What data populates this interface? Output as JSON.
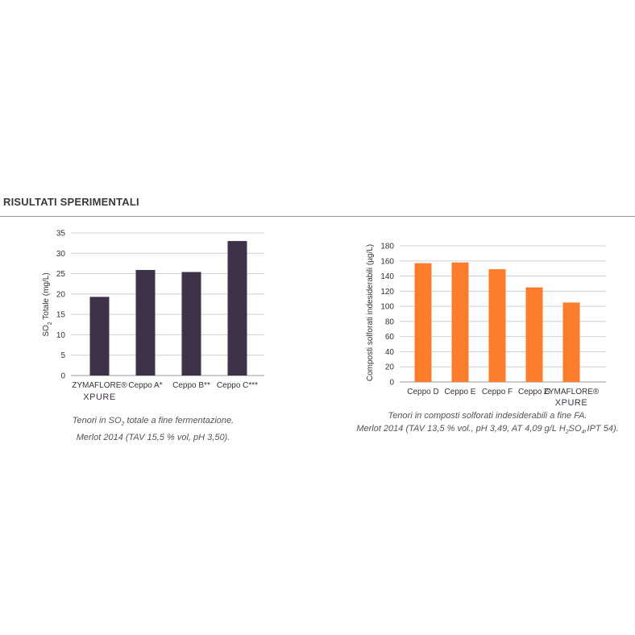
{
  "section_title": "RISULTATI SPERIMENTALI",
  "chart_data": [
    {
      "type": "bar",
      "title": "",
      "ylabel_main": "SO",
      "ylabel_sub": "2",
      "ylabel_rest": " Totale (mg/L)",
      "ylim": [
        0,
        35
      ],
      "yticks": [
        0,
        5,
        10,
        15,
        20,
        25,
        30,
        35
      ],
      "grid": true,
      "bar_color": "#3e3248",
      "categories": [
        "ZYMAFLORE®",
        "Ceppo A*",
        "Ceppo B**",
        "Ceppo C***"
      ],
      "category_sublabels": [
        "XPURE",
        "",
        "",
        ""
      ],
      "values": [
        19.3,
        25.9,
        25.4,
        33.0
      ]
    },
    {
      "type": "bar",
      "title": "",
      "ylabel": "Composti solforati indesiderabili (µg/L)",
      "ylim": [
        0,
        180
      ],
      "yticks": [
        0,
        20,
        40,
        60,
        80,
        100,
        120,
        140,
        160,
        180
      ],
      "grid": true,
      "bar_color": "#fb7d2c",
      "categories": [
        "Ceppo D",
        "Ceppo E",
        "Ceppo F",
        "Ceppo G",
        "ZYMAFLORE®"
      ],
      "category_sublabels": [
        "",
        "",
        "",
        "",
        "XPURE"
      ],
      "values": [
        157,
        158,
        149,
        125,
        105
      ]
    }
  ],
  "captions": {
    "left": {
      "line1_a": "Tenori in SO",
      "line1_sub": "2",
      "line1_b": " totale a fine fermentazione.",
      "line2": "Merlot 2014 (TAV 15,5 % vol, pH 3,50)."
    },
    "right": {
      "line1": "Tenori in composti solforati indesiderabili a fine FA.",
      "line2_a": "Merlot 2014 (TAV 13,5 % vol., pH 3,49, AT 4,09 g/L H",
      "line2_sub1": "2",
      "line2_b": "SO",
      "line2_sub2": "4",
      "line2_c": ",IPT 54)."
    }
  }
}
